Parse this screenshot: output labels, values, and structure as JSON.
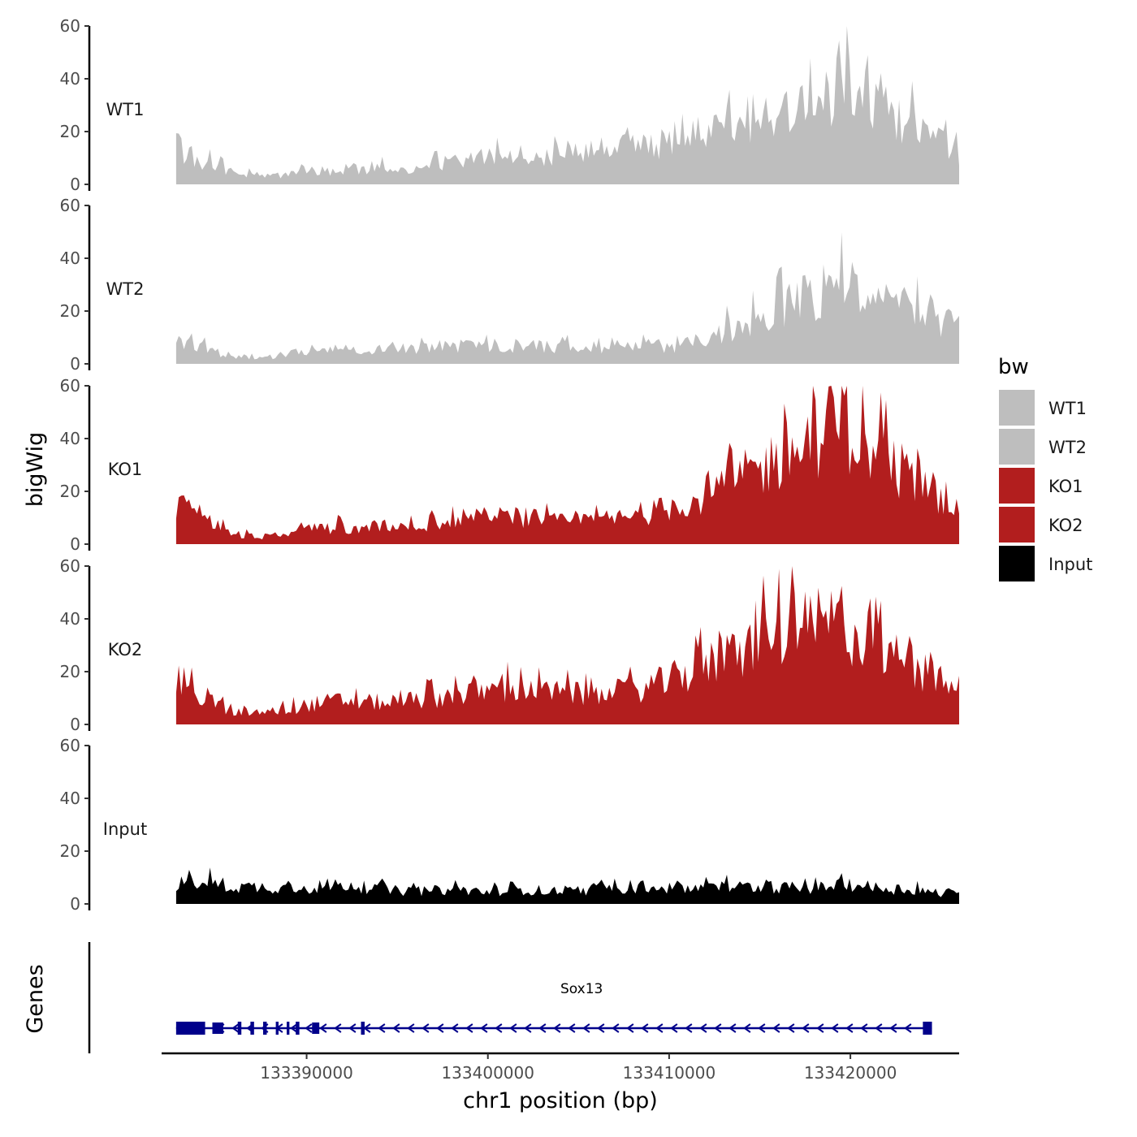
{
  "chart_data": {
    "type": "area",
    "ylabel": "bigWig",
    "xlabel": "chr1 position (bp)",
    "ylim": [
      0,
      60
    ],
    "yticks": [
      0,
      20,
      40,
      60
    ],
    "xlim": [
      133382000,
      133426000
    ],
    "xticks": [
      133390000,
      133400000,
      133410000,
      133420000
    ],
    "xtick_labels": [
      "133390000",
      "133400000",
      "133410000",
      "133420000"
    ],
    "genes_label": "Genes",
    "legend": {
      "title": "bw",
      "entries": [
        {
          "label": "WT1",
          "color": "#bebebe"
        },
        {
          "label": "WT2",
          "color": "#bebebe"
        },
        {
          "label": "KO1",
          "color": "#b21e1e"
        },
        {
          "label": "KO2",
          "color": "#b21e1e"
        },
        {
          "label": "Input",
          "color": "#000000"
        }
      ]
    },
    "tracks": [
      {
        "name": "WT1",
        "color": "#bebebe",
        "x_start": 133382800,
        "x_end": 133426000,
        "profile": [
          [
            133382800,
            15
          ],
          [
            133384000,
            10
          ],
          [
            133386000,
            5
          ],
          [
            133388000,
            3
          ],
          [
            133390000,
            5
          ],
          [
            133392000,
            6
          ],
          [
            133394000,
            7
          ],
          [
            133396000,
            7
          ],
          [
            133398000,
            9
          ],
          [
            133400000,
            11
          ],
          [
            133402000,
            13
          ],
          [
            133404000,
            12
          ],
          [
            133406000,
            14
          ],
          [
            133408000,
            15
          ],
          [
            133410000,
            17
          ],
          [
            133412000,
            21
          ],
          [
            133414000,
            25
          ],
          [
            133416000,
            30
          ],
          [
            133418000,
            36
          ],
          [
            133419500,
            42
          ],
          [
            133421000,
            33
          ],
          [
            133423000,
            26
          ],
          [
            133426000,
            12
          ]
        ]
      },
      {
        "name": "WT2",
        "color": "#bebebe",
        "x_start": 133382800,
        "x_end": 133426000,
        "profile": [
          [
            133382800,
            9
          ],
          [
            133384000,
            7
          ],
          [
            133386000,
            3
          ],
          [
            133388000,
            3
          ],
          [
            133390000,
            5
          ],
          [
            133392000,
            6
          ],
          [
            133394000,
            6
          ],
          [
            133396000,
            6
          ],
          [
            133398000,
            7
          ],
          [
            133400000,
            8
          ],
          [
            133402000,
            7
          ],
          [
            133404000,
            7
          ],
          [
            133406000,
            6
          ],
          [
            133408000,
            8
          ],
          [
            133410000,
            7
          ],
          [
            133412000,
            10
          ],
          [
            133414000,
            16
          ],
          [
            133416000,
            23
          ],
          [
            133418000,
            28
          ],
          [
            133419500,
            33
          ],
          [
            133421000,
            28
          ],
          [
            133423000,
            22
          ],
          [
            133426000,
            16
          ]
        ]
      },
      {
        "name": "KO1",
        "color": "#b21e1e",
        "x_start": 133382800,
        "x_end": 133426000,
        "profile": [
          [
            133382800,
            14
          ],
          [
            133384000,
            12
          ],
          [
            133386000,
            4
          ],
          [
            133388000,
            3
          ],
          [
            133390000,
            6
          ],
          [
            133392000,
            7
          ],
          [
            133394000,
            7
          ],
          [
            133396000,
            8
          ],
          [
            133398000,
            10
          ],
          [
            133400000,
            12
          ],
          [
            133402000,
            11
          ],
          [
            133404000,
            9
          ],
          [
            133406000,
            10
          ],
          [
            133408000,
            11
          ],
          [
            133410000,
            15
          ],
          [
            133412000,
            20
          ],
          [
            133414000,
            27
          ],
          [
            133416000,
            35
          ],
          [
            133418000,
            43
          ],
          [
            133419500,
            50
          ],
          [
            133421000,
            40
          ],
          [
            133423000,
            28
          ],
          [
            133426000,
            14
          ]
        ]
      },
      {
        "name": "KO2",
        "color": "#b21e1e",
        "x_start": 133382800,
        "x_end": 133426000,
        "profile": [
          [
            133382800,
            18
          ],
          [
            133384000,
            12
          ],
          [
            133386000,
            5
          ],
          [
            133388000,
            5
          ],
          [
            133390000,
            8
          ],
          [
            133392000,
            10
          ],
          [
            133394000,
            9
          ],
          [
            133396000,
            10
          ],
          [
            133398000,
            12
          ],
          [
            133400000,
            14
          ],
          [
            133402000,
            15
          ],
          [
            133404000,
            13
          ],
          [
            133406000,
            12
          ],
          [
            133408000,
            14
          ],
          [
            133410000,
            18
          ],
          [
            133412000,
            24
          ],
          [
            133414000,
            30
          ],
          [
            133416000,
            37
          ],
          [
            133418000,
            40
          ],
          [
            133419500,
            43
          ],
          [
            133421000,
            32
          ],
          [
            133423000,
            24
          ],
          [
            133426000,
            14
          ]
        ]
      },
      {
        "name": "Input",
        "color": "#000000",
        "x_start": 133382800,
        "x_end": 133426000,
        "profile": [
          [
            133382800,
            8
          ],
          [
            133384000,
            10
          ],
          [
            133386000,
            7
          ],
          [
            133388000,
            7
          ],
          [
            133390000,
            6
          ],
          [
            133392000,
            8
          ],
          [
            133394000,
            6
          ],
          [
            133396000,
            5
          ],
          [
            133398000,
            6
          ],
          [
            133400000,
            5
          ],
          [
            133402000,
            6
          ],
          [
            133404000,
            5
          ],
          [
            133406000,
            6
          ],
          [
            133408000,
            7
          ],
          [
            133410000,
            6
          ],
          [
            133412000,
            7
          ],
          [
            133414000,
            7
          ],
          [
            133416000,
            7
          ],
          [
            133418000,
            6
          ],
          [
            133419500,
            9
          ],
          [
            133421000,
            7
          ],
          [
            133423000,
            6
          ],
          [
            133426000,
            4
          ]
        ]
      }
    ],
    "gene": {
      "name": "Sox13",
      "color": "#00008b",
      "strand": "-",
      "start": 133382800,
      "end": 133424500,
      "exons": [
        [
          133382800,
          133384400
        ],
        [
          133384800,
          133385400
        ],
        [
          133386200,
          133386400
        ],
        [
          133386900,
          133387100
        ],
        [
          133387600,
          133387800
        ],
        [
          133388300,
          133388450
        ],
        [
          133388900,
          133389050
        ],
        [
          133389400,
          133389600
        ],
        [
          133390300,
          133390700
        ],
        [
          133393000,
          133393200
        ],
        [
          133424000,
          133424500
        ]
      ]
    }
  }
}
